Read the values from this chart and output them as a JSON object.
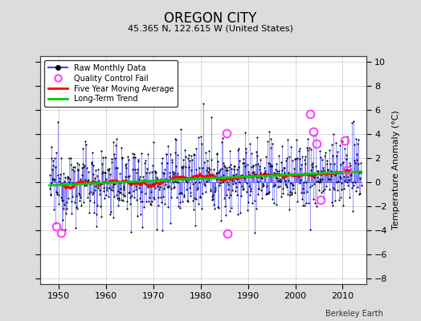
{
  "title": "OREGON CITY",
  "subtitle": "45.365 N, 122.615 W (United States)",
  "ylabel": "Temperature Anomaly (°C)",
  "attribution": "Berkeley Earth",
  "xlim": [
    1946,
    2015
  ],
  "ylim": [
    -8.5,
    10.5
  ],
  "yticks": [
    -8,
    -6,
    -4,
    -2,
    0,
    2,
    4,
    6,
    8,
    10
  ],
  "xticks": [
    1950,
    1960,
    1970,
    1980,
    1990,
    2000,
    2010
  ],
  "start_year": 1948,
  "end_year": 2013,
  "background_color": "#dcdcdc",
  "plot_bg_color": "#ffffff",
  "raw_color": "#4444ff",
  "moving_avg_color": "#ff0000",
  "trend_color": "#00cc00",
  "qc_color": "#ff44ff",
  "seed": 12345,
  "qc_points": [
    [
      1949.5,
      -3.7
    ],
    [
      1950.5,
      -4.2
    ],
    [
      1985.5,
      4.1
    ],
    [
      1985.7,
      -4.3
    ],
    [
      2003.2,
      5.7
    ],
    [
      2003.8,
      4.2
    ],
    [
      2004.5,
      3.2
    ],
    [
      2005.3,
      -1.5
    ],
    [
      2010.5,
      3.5
    ],
    [
      2011.0,
      1.0
    ]
  ]
}
